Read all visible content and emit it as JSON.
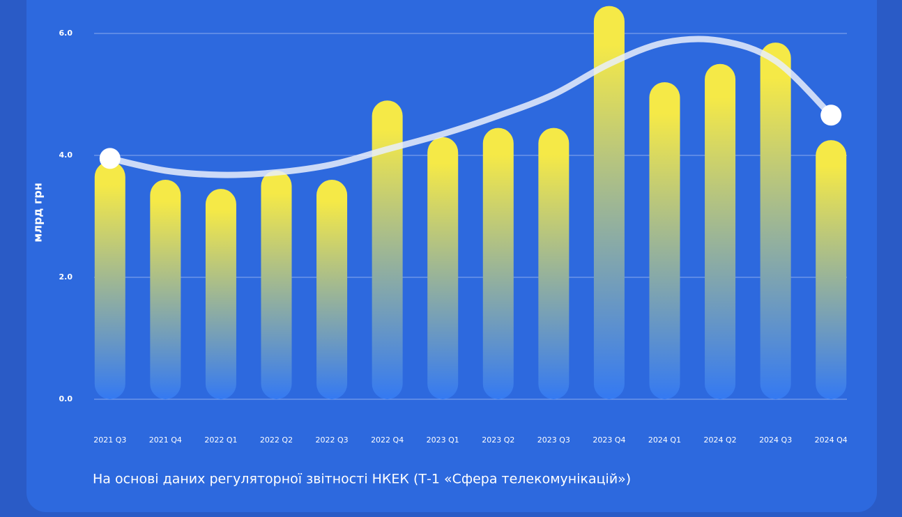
{
  "chart_data": {
    "type": "bar",
    "y_label": "млрд грн",
    "note": "На основі даних регуляторної звітності НКЕК (Т-1 «Сфера телекомунікацій»)",
    "categories": [
      "2021 Q3",
      "2021 Q4",
      "2022 Q1",
      "2022 Q2",
      "2022 Q3",
      "2022 Q4",
      "2023 Q1",
      "2023 Q2",
      "2023 Q3",
      "2023 Q4",
      "2024 Q1",
      "2024 Q2",
      "2024 Q3",
      "2024 Q4"
    ],
    "series": [
      {
        "type": "bar",
        "gradient": [
          "#f5e947",
          "#3479f2"
        ],
        "values": [
          3.9,
          3.6,
          3.45,
          3.75,
          3.6,
          4.9,
          4.3,
          4.45,
          4.45,
          6.45,
          5.2,
          5.5,
          5.85,
          4.25
        ]
      },
      {
        "type": "line",
        "color": "#e9eefb",
        "values": [
          3.95,
          3.75,
          3.68,
          3.72,
          3.85,
          4.1,
          4.35,
          4.65,
          5.0,
          5.5,
          5.85,
          5.88,
          5.55,
          4.66
        ]
      }
    ],
    "ylim": [
      0,
      6
    ],
    "yticks": [
      {
        "value": 0,
        "label": "0.0"
      },
      {
        "value": 2,
        "label": "2.0"
      },
      {
        "value": 4,
        "label": "4.0"
      },
      {
        "value": 6,
        "label": "6.0"
      }
    ],
    "grid": true
  }
}
